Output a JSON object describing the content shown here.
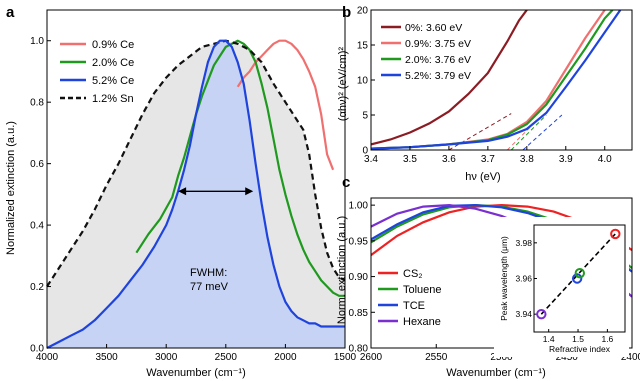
{
  "chart_data": [
    {
      "panel": "a",
      "type": "line",
      "xlabel": "Wavenumber (cm⁻¹)",
      "ylabel": "Normalized extinction (a.u.)",
      "xlim": [
        4000,
        1500
      ],
      "ylim": [
        0,
        1.1
      ],
      "xticks": [
        4000,
        3500,
        3000,
        2500,
        2000,
        1500
      ],
      "yticks": [
        0.0,
        0.2,
        0.4,
        0.6,
        0.8,
        1.0
      ],
      "legend_position": "top-left",
      "annotation": {
        "lines": [
          "FWHM:",
          "77 meV"
        ],
        "arrow_from": 2900,
        "arrow_to": 2270,
        "arrow_y": 0.51
      },
      "series": [
        {
          "name": "0.9% Ce",
          "color": "#f07070",
          "x": [
            2400,
            2350,
            2300,
            2250,
            2200,
            2150,
            2100,
            2050,
            2000,
            1950,
            1900,
            1850,
            1800,
            1750,
            1700,
            1650,
            1600
          ],
          "y": [
            0.85,
            0.88,
            0.9,
            0.93,
            0.95,
            0.97,
            0.99,
            1.0,
            1.0,
            0.99,
            0.97,
            0.94,
            0.9,
            0.85,
            0.76,
            0.63,
            0.58
          ]
        },
        {
          "name": "2.0% Ce",
          "color": "#1f9a1f",
          "x": [
            3250,
            3150,
            3050,
            2950,
            2900,
            2850,
            2800,
            2750,
            2700,
            2650,
            2600,
            2550,
            2500,
            2450,
            2400,
            2350,
            2300,
            2250,
            2200,
            2150,
            2100,
            2050,
            2000,
            1950,
            1900,
            1850,
            1800,
            1750,
            1700,
            1650,
            1600,
            1550,
            1500
          ],
          "y": [
            0.31,
            0.37,
            0.42,
            0.49,
            0.56,
            0.62,
            0.69,
            0.76,
            0.82,
            0.87,
            0.92,
            0.95,
            0.98,
            0.99,
            1.0,
            0.99,
            0.97,
            0.93,
            0.86,
            0.78,
            0.68,
            0.58,
            0.5,
            0.43,
            0.37,
            0.32,
            0.28,
            0.25,
            0.22,
            0.2,
            0.18,
            0.17,
            0.17
          ]
        },
        {
          "name": "5.2% Ce",
          "color": "#1f44dd",
          "x": [
            4000,
            3900,
            3800,
            3700,
            3600,
            3500,
            3400,
            3300,
            3200,
            3100,
            3000,
            2950,
            2900,
            2850,
            2800,
            2750,
            2700,
            2650,
            2600,
            2550,
            2500,
            2450,
            2400,
            2350,
            2300,
            2250,
            2200,
            2150,
            2100,
            2050,
            2000,
            1950,
            1900,
            1850,
            1800,
            1750,
            1700,
            1650,
            1600,
            1550,
            1500
          ],
          "y": [
            0.0,
            0.02,
            0.04,
            0.06,
            0.09,
            0.13,
            0.17,
            0.22,
            0.27,
            0.33,
            0.4,
            0.45,
            0.51,
            0.58,
            0.66,
            0.76,
            0.85,
            0.93,
            0.98,
            1.0,
            1.0,
            0.98,
            0.93,
            0.86,
            0.74,
            0.6,
            0.47,
            0.36,
            0.27,
            0.2,
            0.15,
            0.12,
            0.1,
            0.09,
            0.08,
            0.08,
            0.07,
            0.07,
            0.07,
            0.07,
            0.07
          ]
        },
        {
          "name": "1.2% Sn",
          "color": "#111111",
          "dashed": true,
          "x": [
            4000,
            3900,
            3800,
            3700,
            3600,
            3500,
            3400,
            3300,
            3200,
            3100,
            3000,
            2900,
            2800,
            2700,
            2600,
            2500,
            2400,
            2300,
            2200,
            2100,
            2000,
            1900,
            1850,
            1800,
            1750,
            1700,
            1650,
            1600,
            1550,
            1500
          ],
          "y": [
            0.2,
            0.26,
            0.32,
            0.38,
            0.45,
            0.53,
            0.6,
            0.68,
            0.76,
            0.83,
            0.88,
            0.92,
            0.95,
            0.98,
            0.99,
            1.0,
            0.99,
            0.97,
            0.93,
            0.86,
            0.8,
            0.74,
            0.71,
            0.63,
            0.5,
            0.39,
            0.31,
            0.26,
            0.23,
            0.22
          ]
        }
      ]
    },
    {
      "panel": "b",
      "type": "line",
      "xlabel": "hν (eV)",
      "ylabel": "(αhν)² (eV/cm)²",
      "xlim": [
        3.4,
        4.07
      ],
      "ylim": [
        0,
        20
      ],
      "xticks": [
        3.4,
        3.5,
        3.6,
        3.7,
        3.8,
        3.9,
        4.0
      ],
      "yticks": [
        0,
        5,
        10,
        15,
        20
      ],
      "legend_position": "top-left",
      "series": [
        {
          "name": "0%: 3.60 eV",
          "color": "#8c1c24",
          "x": [
            3.4,
            3.45,
            3.5,
            3.55,
            3.6,
            3.65,
            3.7,
            3.75,
            3.78,
            3.8
          ],
          "y": [
            0.8,
            1.5,
            2.5,
            3.8,
            5.5,
            8.0,
            11.0,
            15.5,
            18.5,
            20.0
          ],
          "fit": {
            "x": [
              3.6,
              3.76
            ],
            "y": [
              0.0,
              5.2
            ]
          }
        },
        {
          "name": "0.9%: 3.75 eV",
          "color": "#f07070",
          "x": [
            3.4,
            3.5,
            3.6,
            3.7,
            3.75,
            3.8,
            3.85,
            3.9,
            3.95,
            4.0
          ],
          "y": [
            0.2,
            0.4,
            0.8,
            1.5,
            2.3,
            4.0,
            7.0,
            11.5,
            16.0,
            20.0
          ],
          "fit": {
            "x": [
              3.75,
              3.84
            ],
            "y": [
              0.0,
              5.0
            ]
          }
        },
        {
          "name": "2.0%: 3.76 eV",
          "color": "#1f9a1f",
          "x": [
            3.4,
            3.5,
            3.6,
            3.7,
            3.75,
            3.8,
            3.85,
            3.9,
            3.95,
            4.0,
            4.02
          ],
          "y": [
            0.2,
            0.4,
            0.8,
            1.4,
            2.2,
            3.7,
            6.5,
            10.5,
            14.5,
            18.8,
            20.0
          ],
          "fit": {
            "x": [
              3.76,
              3.85
            ],
            "y": [
              0.0,
              5.0
            ]
          }
        },
        {
          "name": "5.2%: 3.79 eV",
          "color": "#1f44dd",
          "x": [
            3.4,
            3.5,
            3.6,
            3.7,
            3.75,
            3.8,
            3.85,
            3.9,
            3.95,
            4.0,
            4.04
          ],
          "y": [
            0.2,
            0.4,
            0.8,
            1.3,
            1.9,
            3.0,
            5.3,
            9.0,
            12.8,
            16.8,
            20.0
          ],
          "fit": {
            "x": [
              3.79,
              3.89
            ],
            "y": [
              0.0,
              5.0
            ]
          }
        }
      ]
    },
    {
      "panel": "c",
      "type": "line",
      "xlabel": "Wavenumber (cm⁻¹)",
      "ylabel": "Norm. extinction (a.u.)",
      "xlim": [
        2600,
        2400
      ],
      "ylim": [
        0.8,
        1.01
      ],
      "xticks": [
        2600,
        2550,
        2500,
        2450,
        2400
      ],
      "yticks": [
        0.8,
        0.85,
        0.9,
        0.95,
        1.0
      ],
      "legend_position": "bottom-left",
      "series": [
        {
          "name": "CS₂",
          "color": "#ee2222",
          "x": [
            2600,
            2580,
            2560,
            2540,
            2520,
            2500,
            2480,
            2460,
            2440,
            2420,
            2400
          ],
          "y": [
            0.93,
            0.957,
            0.976,
            0.99,
            0.998,
            1.0,
            0.998,
            0.991,
            0.978,
            0.961,
            0.937
          ]
        },
        {
          "name": "Toluene",
          "color": "#1f9a1f",
          "x": [
            2600,
            2580,
            2560,
            2540,
            2520,
            2500,
            2480,
            2460,
            2440,
            2420,
            2400
          ],
          "y": [
            0.948,
            0.97,
            0.987,
            0.997,
            1.0,
            0.998,
            0.991,
            0.979,
            0.962,
            0.94,
            0.912
          ]
        },
        {
          "name": "TCE",
          "color": "#1f44dd",
          "x": [
            2600,
            2580,
            2560,
            2540,
            2520,
            2500,
            2480,
            2460,
            2440,
            2420,
            2400
          ],
          "y": [
            0.952,
            0.973,
            0.99,
            0.999,
            1.0,
            0.997,
            0.989,
            0.976,
            0.958,
            0.935,
            0.907
          ]
        },
        {
          "name": "Hexane",
          "color": "#7a2fd0",
          "x": [
            2600,
            2580,
            2560,
            2540,
            2520,
            2500,
            2480,
            2460,
            2440,
            2420,
            2400
          ],
          "y": [
            0.97,
            0.988,
            0.998,
            1.0,
            0.995,
            0.985,
            0.97,
            0.951,
            0.928,
            0.902,
            0.872
          ]
        }
      ],
      "inset": {
        "type": "scatter",
        "xlabel": "Refractive index",
        "ylabel": "Peak wavelength (μm)",
        "xlim": [
          1.35,
          1.66
        ],
        "ylim": [
          3.93,
          3.99
        ],
        "xticks": [
          1.4,
          1.5,
          1.6
        ],
        "yticks": [
          3.94,
          3.96,
          3.98
        ],
        "points": [
          {
            "x": 1.375,
            "y": 3.94,
            "color": "#7a2fd0"
          },
          {
            "x": 1.497,
            "y": 3.96,
            "color": "#1f44dd"
          },
          {
            "x": 1.506,
            "y": 3.963,
            "color": "#1f9a1f"
          },
          {
            "x": 1.627,
            "y": 3.985,
            "color": "#ee2222"
          }
        ],
        "fit": {
          "x": [
            1.375,
            1.627
          ],
          "y": [
            3.94,
            3.985
          ]
        }
      }
    }
  ],
  "panel_labels": [
    "a",
    "b",
    "c"
  ],
  "colors": {
    "fill_sn": "#e6e6e6",
    "fill_ce": "#c6d3f4",
    "axis": "#000000"
  }
}
